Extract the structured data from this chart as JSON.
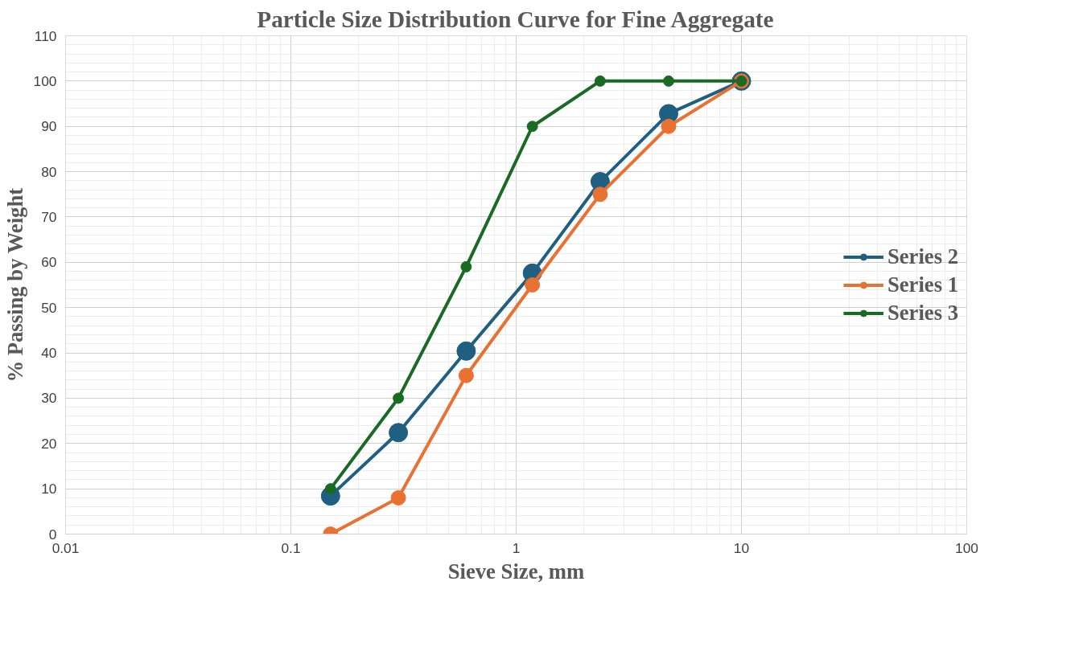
{
  "chart_data": {
    "type": "line",
    "title": "Particle Size Distribution Curve for Fine Aggregate",
    "xlabel": "Sieve Size, mm",
    "ylabel": "% Passing by Weight",
    "x": [
      0.15,
      0.3,
      0.6,
      1.18,
      2.36,
      4.75,
      10
    ],
    "series": [
      {
        "name": "Series 2",
        "color": "#1f5f82",
        "values": [
          8.4,
          22.4,
          40.4,
          57.6,
          77.8,
          92.8,
          100
        ]
      },
      {
        "name": "Series 1",
        "color": "#e97132",
        "values": [
          0,
          8,
          35,
          55,
          75,
          90,
          100
        ]
      },
      {
        "name": "Series 3",
        "color": "#196b24",
        "values": [
          10,
          30,
          59,
          90,
          100,
          100,
          100
        ]
      }
    ],
    "log": "x",
    "xlim": [
      0.01,
      100
    ],
    "xticks": [
      0.01,
      0.1,
      1,
      10,
      100
    ],
    "ylim": [
      0,
      110
    ],
    "yticks": [
      0,
      10,
      20,
      30,
      40,
      50,
      60,
      70,
      80,
      90,
      100,
      110
    ],
    "grid": true,
    "legend": "right",
    "marker": "circle",
    "line_style": "solid"
  }
}
